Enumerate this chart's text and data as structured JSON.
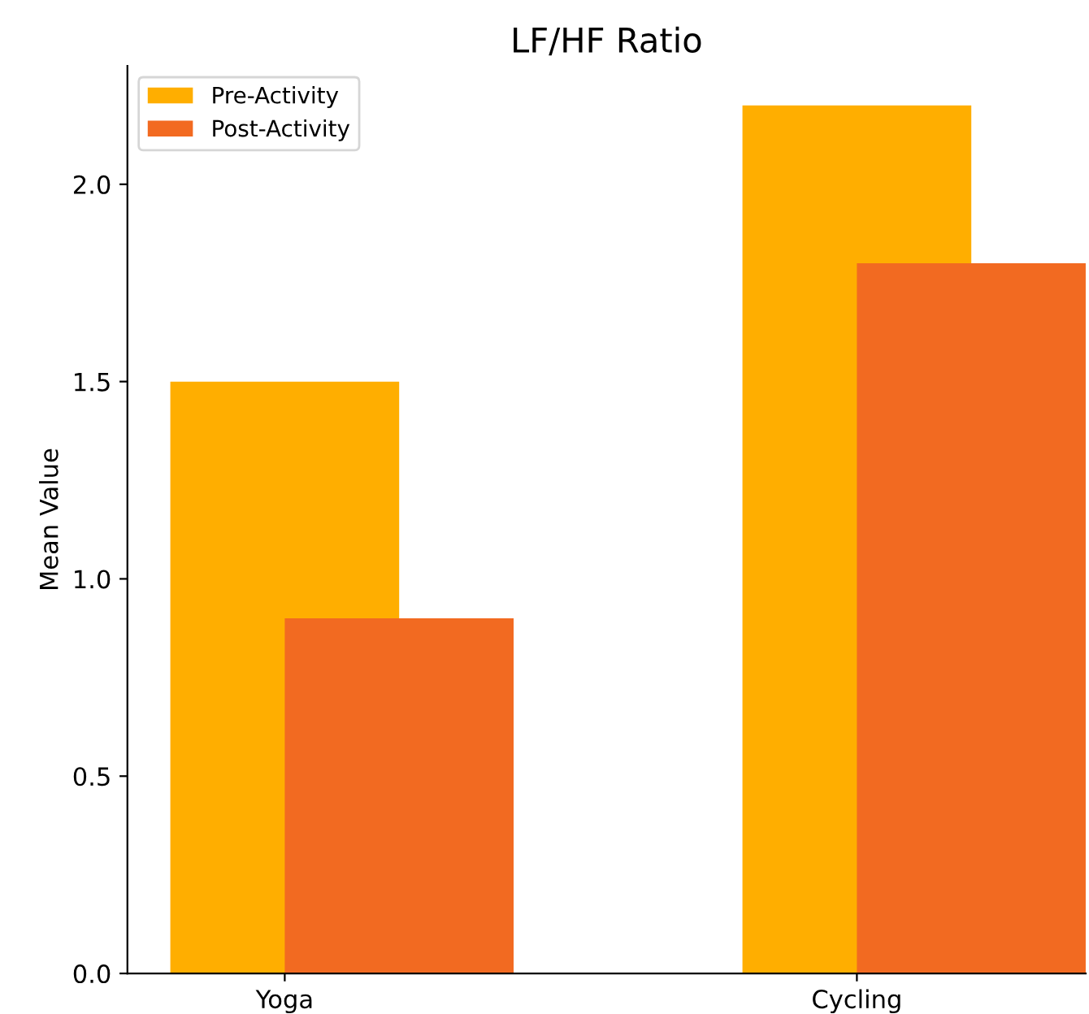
{
  "chart_data": {
    "type": "bar",
    "title": "LF/HF Ratio",
    "ylabel": "Mean Value",
    "categories": [
      "Yoga",
      "Cycling"
    ],
    "series": [
      {
        "name": "Pre-Activity",
        "color": "#ffae00",
        "values": [
          1.5,
          2.2
        ]
      },
      {
        "name": "Post-Activity",
        "color": "#f26a21",
        "values": [
          0.9,
          1.8
        ]
      }
    ],
    "ylim": [
      0,
      2.3
    ],
    "yticks": [
      {
        "value": 0,
        "label": "0.0"
      },
      0.5,
      {
        "value": 1,
        "label": "1.0"
      },
      1.5,
      {
        "value": 2,
        "label": "2.0"
      }
    ],
    "grid": false,
    "legend": "top left"
  }
}
